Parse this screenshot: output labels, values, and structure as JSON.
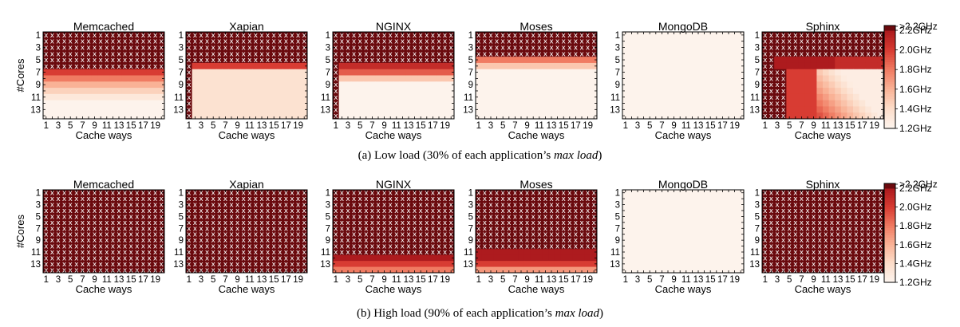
{
  "chart_data": [
    {
      "type": "heatmap",
      "row": "a",
      "caption_prefix": "(a) Low load (30% of each application’s ",
      "caption_emph": "max load",
      "caption_suffix": ")",
      "xlabel": "Cache ways",
      "ylabel": "#Cores",
      "xticks": [
        "1",
        "3",
        "5",
        "7",
        "9",
        "11",
        "13",
        "15",
        "17",
        "19"
      ],
      "yticks": [
        "1",
        "3",
        "5",
        "7",
        "9",
        "11",
        "13"
      ],
      "colorbar": {
        "labels": [
          ">2.2GHz",
          "2.2GHz",
          "2.0GHz",
          "1.8GHz",
          "1.6GHz",
          "1.4GHz",
          "1.2GHz"
        ],
        "range": [
          1.2,
          2.2
        ],
        "colors": [
          "#fdf3ec",
          "#fcdcc8",
          "#f9b296",
          "#f07b62",
          "#d83c33",
          "#ad1b1e",
          "#6b0a0e"
        ]
      },
      "panels": [
        {
          "title": "Memcached",
          "model": {
            "x_rows": 5,
            "bands": [
              [
                6,
                2.3
              ],
              [
                7,
                2.0
              ],
              [
                8,
                1.8
              ],
              [
                9,
                1.6
              ],
              [
                10,
                1.45
              ],
              [
                11,
                1.3
              ],
              [
                14,
                1.2
              ]
            ]
          }
        },
        {
          "title": "Xapian",
          "model": {
            "x_rows": 4,
            "bands": [
              [
                5,
                2.3
              ],
              [
                6,
                2.0
              ],
              [
                14,
                1.35
              ]
            ],
            "dark_col": 1
          }
        },
        {
          "title": "NGINX",
          "model": {
            "x_rows": 4,
            "bands": [
              [
                5,
                2.3
              ],
              [
                6,
                2.1
              ],
              [
                7,
                1.9
              ],
              [
                8,
                1.5
              ],
              [
                14,
                1.2
              ]
            ],
            "dark_col": 1
          }
        },
        {
          "title": "Moses",
          "model": {
            "x_rows": 4,
            "bands": [
              [
                5,
                1.8
              ],
              [
                6,
                1.5
              ],
              [
                14,
                1.2
              ]
            ]
          }
        },
        {
          "title": "MongoDB",
          "model": {
            "x_rows": 0,
            "bands": [
              [
                14,
                1.2
              ]
            ]
          }
        },
        {
          "title": "Sphinx",
          "model": {
            "x_rows": 4,
            "bands": [
              [
                5,
                2.3
              ],
              [
                14,
                2.3
              ]
            ],
            "sphinx": true
          }
        }
      ]
    },
    {
      "type": "heatmap",
      "row": "b",
      "caption_prefix": "(b) High load (90% of each application’s ",
      "caption_emph": "max load",
      "caption_suffix": ")",
      "xlabel": "Cache ways",
      "ylabel": "#Cores",
      "xticks": [
        "1",
        "3",
        "5",
        "7",
        "9",
        "11",
        "13",
        "15",
        "17",
        "19"
      ],
      "yticks": [
        "1",
        "3",
        "5",
        "7",
        "9",
        "11",
        "13"
      ],
      "colorbar": {
        "labels": [
          ">2.2GHz",
          "2.2GHz",
          "2.0GHz",
          "1.8GHz",
          "1.6GHz",
          "1.4GHz",
          "1.2GHz"
        ],
        "range": [
          1.2,
          2.2
        ],
        "colors": [
          "#fdf3ec",
          "#fcdcc8",
          "#f9b296",
          "#f07b62",
          "#d83c33",
          "#ad1b1e",
          "#6b0a0e"
        ]
      },
      "panels": [
        {
          "title": "Memcached",
          "model": {
            "x_rows": 14,
            "bands": [
              [
                14,
                2.3
              ]
            ]
          }
        },
        {
          "title": "Xapian",
          "model": {
            "x_rows": 14,
            "bands": [
              [
                14,
                2.3
              ]
            ],
            "corner": [
              [
                11,
                15,
                2.2
              ],
              [
                13,
                15,
                2.0
              ]
            ]
          }
        },
        {
          "title": "NGINX",
          "model": {
            "x_rows": 11,
            "bands": [
              [
                11,
                2.3
              ],
              [
                12,
                2.2
              ],
              [
                13,
                2.0
              ],
              [
                14,
                1.8
              ]
            ]
          }
        },
        {
          "title": "Moses",
          "model": {
            "x_rows": 10,
            "bands": [
              [
                10,
                2.3
              ],
              [
                11,
                2.2
              ],
              [
                12,
                2.2
              ],
              [
                13,
                2.0
              ],
              [
                14,
                1.7
              ]
            ]
          }
        },
        {
          "title": "MongoDB",
          "model": {
            "x_rows": 0,
            "bands": [
              [
                14,
                1.2
              ]
            ]
          }
        },
        {
          "title": "Sphinx",
          "model": {
            "x_rows": 14,
            "bands": [
              [
                14,
                2.3
              ]
            ],
            "corner": [
              [
                12,
                18,
                2.2
              ]
            ]
          }
        }
      ]
    }
  ]
}
